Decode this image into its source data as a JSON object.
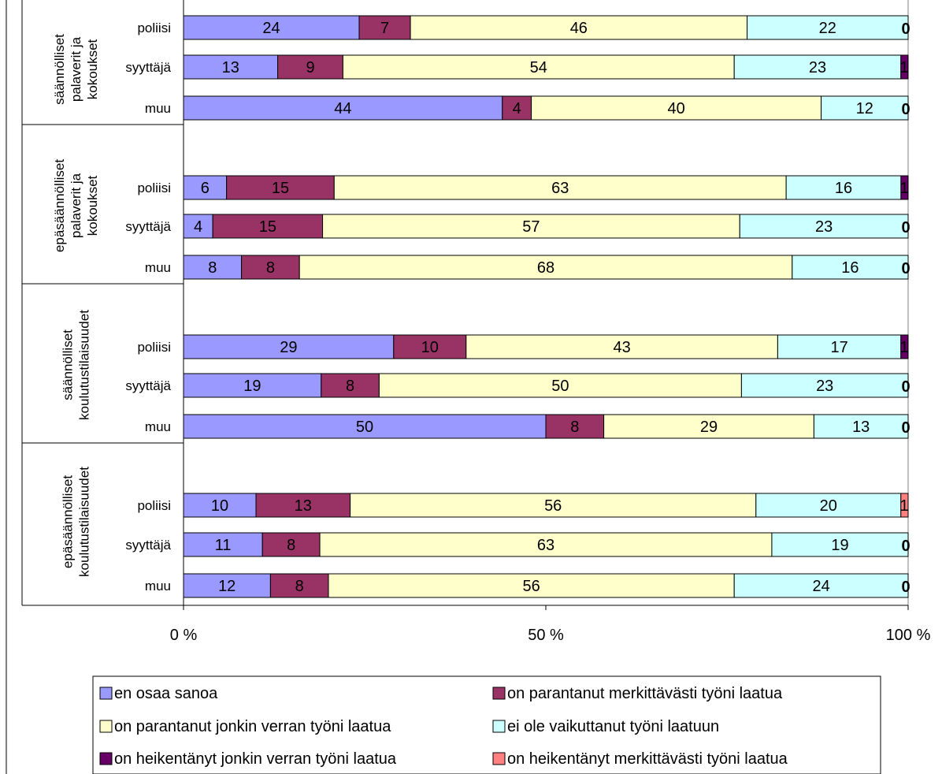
{
  "chart_data": {
    "type": "bar",
    "orientation": "horizontal",
    "stacked": "percent",
    "x_ticks": [
      "0 %",
      "50 %",
      "100 %"
    ],
    "xlim": [
      0,
      100
    ],
    "grid": false,
    "legend_position": "bottom",
    "groups": [
      {
        "label": "säännölliset palaverit ja kokoukset",
        "label_lines": [
          "säännölliset",
          "palaverit ja",
          "kokoukset"
        ],
        "categories": [
          "poliisi",
          "syyttäjä",
          "muu"
        ]
      },
      {
        "label": "epäsäännölliset palaverit ja kokoukset",
        "label_lines": [
          "epäsäännölliset",
          "palaverit ja",
          "kokoukset"
        ],
        "categories": [
          "poliisi",
          "syyttäjä",
          "muu"
        ]
      },
      {
        "label": "säännölliset koulutustilaisuudet",
        "label_lines": [
          "säännölliset",
          "koulutustilaisuudet"
        ],
        "categories": [
          "poliisi",
          "syyttäjä",
          "muu"
        ]
      },
      {
        "label": "epäsäännölliset koulutustilaisuudet",
        "label_lines": [
          "epäsäännölliset",
          "koulutustilaisuudet"
        ],
        "categories": [
          "poliisi",
          "syyttäjä",
          "muu"
        ]
      }
    ],
    "series": [
      {
        "name": "en osaa sanoa",
        "color": "#9999ff",
        "values": [
          24,
          13,
          44,
          6,
          4,
          8,
          29,
          19,
          50,
          10,
          11,
          12
        ]
      },
      {
        "name": "on parantanut merkittävästi työni laatua",
        "color": "#993366",
        "values": [
          7,
          9,
          4,
          15,
          15,
          8,
          10,
          8,
          8,
          13,
          8,
          8
        ]
      },
      {
        "name": "on parantanut jonkin verran työni laatua",
        "color": "#ffffcc",
        "values": [
          46,
          54,
          40,
          63,
          57,
          68,
          43,
          50,
          29,
          56,
          63,
          56
        ]
      },
      {
        "name": "ei ole vaikuttanut työni laatuun",
        "color": "#ccffff",
        "values": [
          22,
          23,
          12,
          16,
          23,
          16,
          17,
          23,
          13,
          20,
          19,
          24
        ]
      },
      {
        "name": "on heikentänyt jonkin verran työni laatua",
        "color": "#660066",
        "values": [
          0,
          1,
          0,
          1,
          0,
          0,
          1,
          0,
          0,
          0,
          0,
          0
        ]
      },
      {
        "name": "on heikentänyt merkittävästi työni laatua",
        "color": "#ff8080",
        "values": [
          0,
          0,
          0,
          0,
          0,
          0,
          0,
          0,
          0,
          1,
          0,
          0
        ]
      }
    ]
  }
}
